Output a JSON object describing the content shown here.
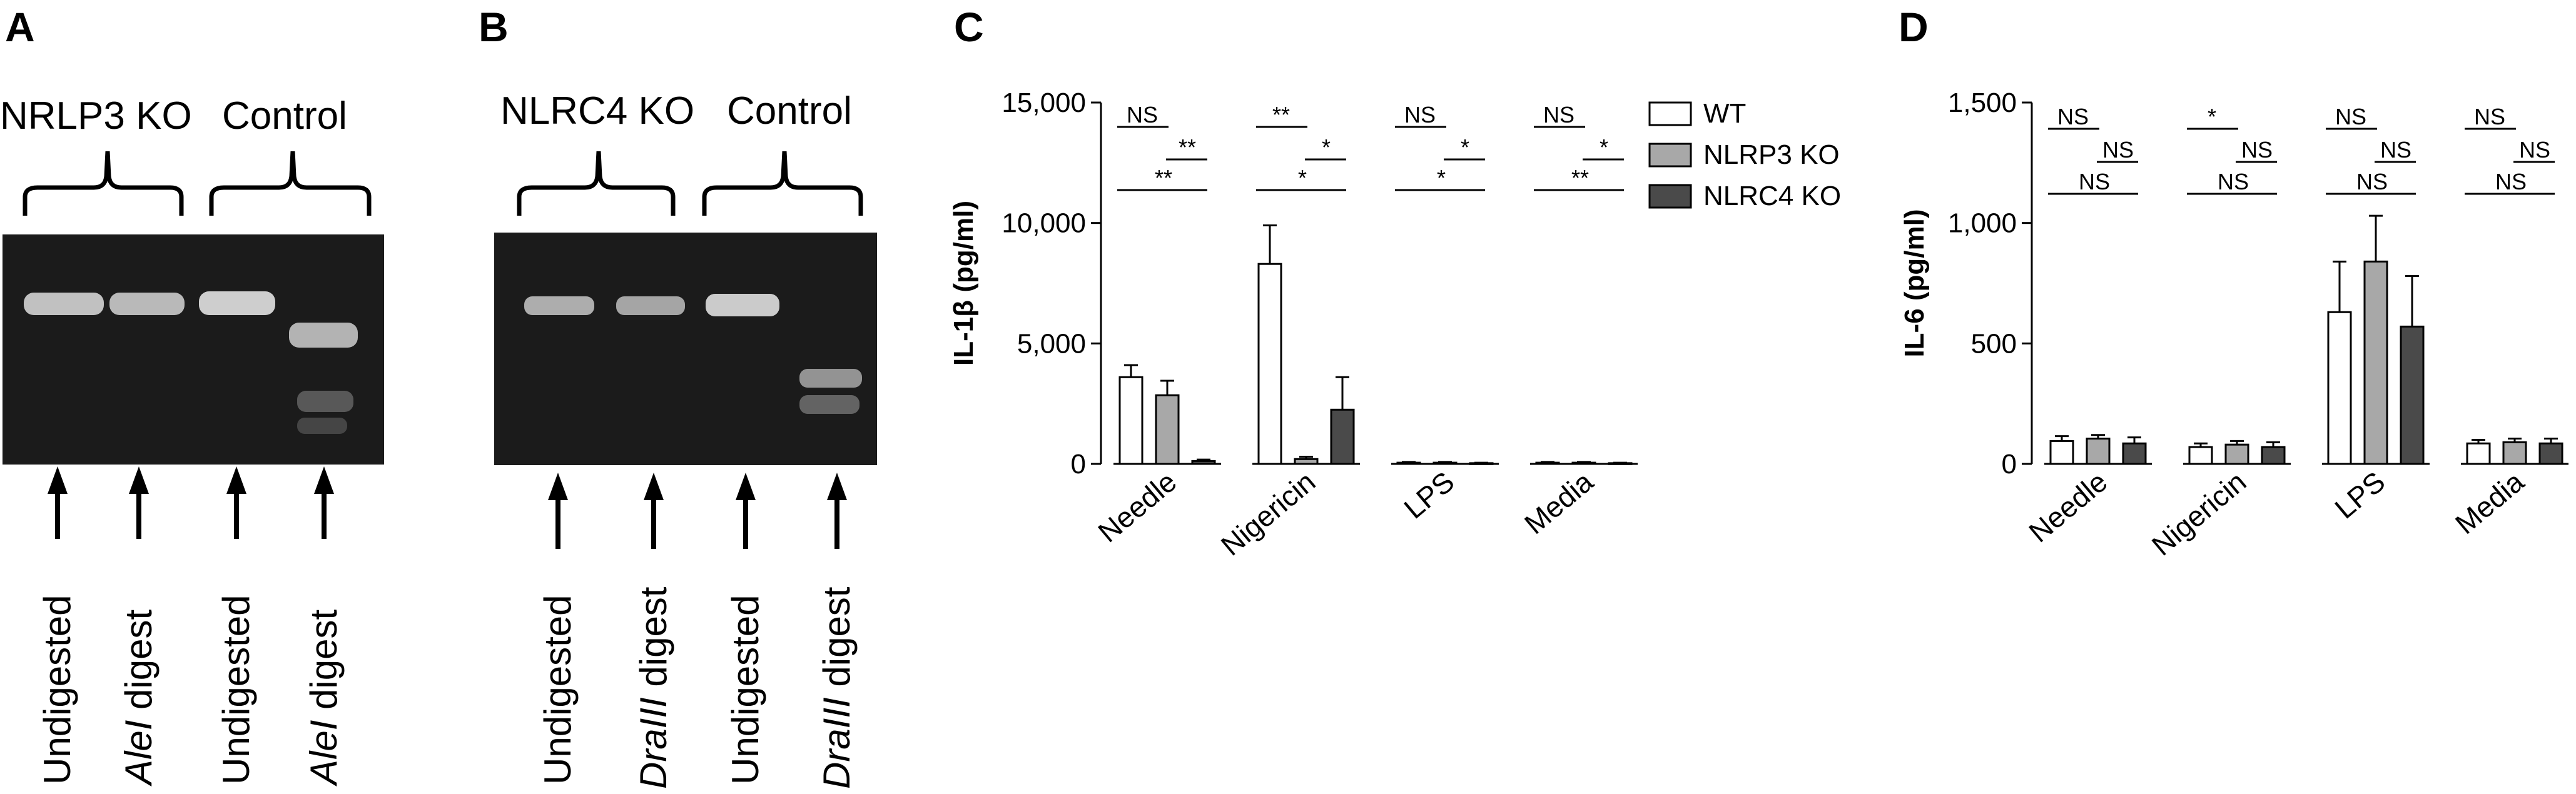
{
  "panels": {
    "a": {
      "letter": "A",
      "label_ko": "NRLP3 KO",
      "label_control": "Control",
      "lanes": [
        {
          "pre": "",
          "ital": "",
          "post": "Undigested"
        },
        {
          "pre": "",
          "ital": "AleI",
          "post": " digest"
        },
        {
          "pre": "",
          "ital": "",
          "post": "Undigested"
        },
        {
          "pre": "",
          "ital": "AleI",
          "post": " digest"
        }
      ]
    },
    "b": {
      "letter": "B",
      "label_ko": "NLRC4 KO",
      "label_control": "Control",
      "lanes": [
        {
          "pre": "",
          "ital": "",
          "post": "Undigested"
        },
        {
          "pre": "",
          "ital": "DraIII",
          "post": " digest"
        },
        {
          "pre": "",
          "ital": "",
          "post": "Undigested"
        },
        {
          "pre": "",
          "ital": "DraIII",
          "post": " digest"
        }
      ]
    },
    "c": {
      "letter": "C"
    },
    "d": {
      "letter": "D"
    }
  },
  "chart_data": [
    {
      "type": "bar",
      "panel": "C",
      "ylabel": "IL-1β (pg/ml)",
      "ylim": [
        0,
        15000
      ],
      "yticks": [
        0,
        5000,
        10000,
        15000
      ],
      "ytick_labels": [
        "0",
        "5,000",
        "10,000",
        "15,000"
      ],
      "categories": [
        "Needle",
        "Nigericin",
        "LPS",
        "Media"
      ],
      "series": [
        {
          "name": "WT",
          "color": "#ffffff",
          "values": [
            3600,
            8300,
            50,
            50
          ],
          "errors": [
            500,
            1600,
            30,
            30
          ]
        },
        {
          "name": "NLRP3 KO",
          "color": "#a8a8a8",
          "values": [
            2850,
            200,
            50,
            50
          ],
          "errors": [
            600,
            100,
            30,
            30
          ]
        },
        {
          "name": "NLRC4 KO",
          "color": "#4a4a4a",
          "values": [
            120,
            2250,
            30,
            30
          ],
          "errors": [
            60,
            1350,
            20,
            20
          ]
        }
      ],
      "significance": [
        [
          "NS",
          "**",
          "**"
        ],
        [
          "**",
          "*",
          "*"
        ],
        [
          "NS",
          "*",
          "*"
        ],
        [
          "NS",
          "*",
          "**"
        ]
      ],
      "legend": {
        "position": "top-right",
        "entries": [
          "WT",
          "NLRP3 KO",
          "NLRC4 KO"
        ]
      }
    },
    {
      "type": "bar",
      "panel": "D",
      "ylabel": "IL-6 (pg/ml)",
      "ylim": [
        0,
        1500
      ],
      "yticks": [
        0,
        500,
        1000,
        1500
      ],
      "ytick_labels": [
        "0",
        "500",
        "1,000",
        "1,500"
      ],
      "categories": [
        "Needle",
        "Nigericin",
        "LPS",
        "Media"
      ],
      "series": [
        {
          "name": "WT",
          "color": "#ffffff",
          "values": [
            95,
            70,
            630,
            85
          ],
          "errors": [
            20,
            15,
            210,
            15
          ]
        },
        {
          "name": "NLRP3 KO",
          "color": "#a8a8a8",
          "values": [
            105,
            80,
            840,
            90
          ],
          "errors": [
            15,
            15,
            190,
            15
          ]
        },
        {
          "name": "NLRC4 KO",
          "color": "#4a4a4a",
          "values": [
            85,
            70,
            570,
            85
          ],
          "errors": [
            25,
            20,
            210,
            20
          ]
        }
      ],
      "significance": [
        [
          "NS",
          "NS",
          "NS"
        ],
        [
          "*",
          "NS",
          "NS"
        ],
        [
          "NS",
          "NS",
          "NS"
        ],
        [
          "NS",
          "NS",
          "NS"
        ]
      ]
    }
  ]
}
